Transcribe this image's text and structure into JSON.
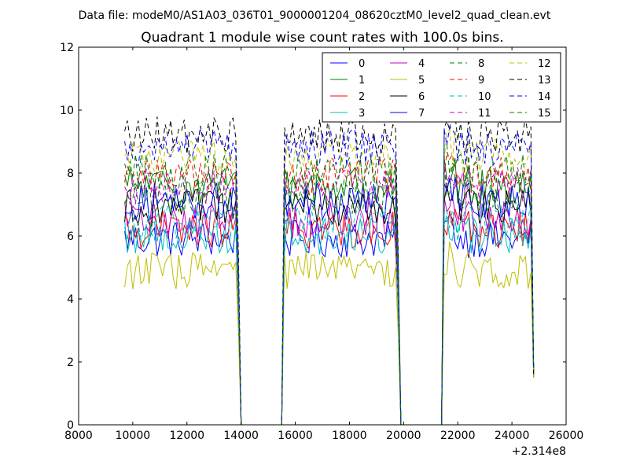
{
  "chart_data": {
    "type": "line",
    "suptitle": "Data file: modeM0/AS1A03_036T01_9000001204_08620cztM0_level2_quad_clean.evt",
    "title": "Quadrant 1 module wise count rates with 100.0s bins.",
    "xlabel": "",
    "ylabel": "",
    "x_offset_label": "+2.314e8",
    "xlim": [
      8000,
      26000
    ],
    "ylim": [
      0,
      12
    ],
    "xticks": [
      8000,
      10000,
      12000,
      14000,
      16000,
      18000,
      20000,
      22000,
      24000,
      26000
    ],
    "yticks": [
      0,
      2,
      4,
      6,
      8,
      10,
      12
    ],
    "grid": false,
    "legend_position": "top-right",
    "legend_columns": 4,
    "segments": [
      {
        "start": 9700,
        "end": 13900,
        "step": 100
      },
      {
        "start": 15600,
        "end": 19800,
        "step": 100
      },
      {
        "start": 21500,
        "end": 24800,
        "step": 100
      }
    ],
    "gap_points": [
      14000,
      14100,
      15500,
      19900,
      20000,
      21400
    ],
    "series": [
      {
        "name": "0",
        "mean": 5.9,
        "color": "#0000ff",
        "dash": "solid"
      },
      {
        "name": "1",
        "mean": 7.6,
        "color": "#008000",
        "dash": "solid"
      },
      {
        "name": "2",
        "mean": 6.2,
        "color": "#ff0000",
        "dash": "solid"
      },
      {
        "name": "3",
        "mean": 6.0,
        "color": "#00bfbf",
        "dash": "solid"
      },
      {
        "name": "4",
        "mean": 6.5,
        "color": "#bf00bf",
        "dash": "solid"
      },
      {
        "name": "5",
        "mean": 4.9,
        "color": "#bfbf00",
        "dash": "solid"
      },
      {
        "name": "6",
        "mean": 6.9,
        "color": "#000000",
        "dash": "solid"
      },
      {
        "name": "7",
        "mean": 7.1,
        "color": "#0000ff",
        "dash": "solid"
      },
      {
        "name": "8",
        "mean": 7.3,
        "color": "#008000",
        "dash": "dashed"
      },
      {
        "name": "9",
        "mean": 7.9,
        "color": "#ff0000",
        "dash": "dashed"
      },
      {
        "name": "10",
        "mean": 6.4,
        "color": "#00bfbf",
        "dash": "dashed"
      },
      {
        "name": "11",
        "mean": 7.6,
        "color": "#bf00bf",
        "dash": "dashed"
      },
      {
        "name": "12",
        "mean": 8.5,
        "color": "#bfbf00",
        "dash": "dashed"
      },
      {
        "name": "13",
        "mean": 9.2,
        "color": "#000000",
        "dash": "dashed"
      },
      {
        "name": "14",
        "mean": 8.8,
        "color": "#0000ff",
        "dash": "dashed"
      },
      {
        "name": "15",
        "mean": 8.0,
        "color": "#008000",
        "dash": "dashed"
      }
    ]
  }
}
